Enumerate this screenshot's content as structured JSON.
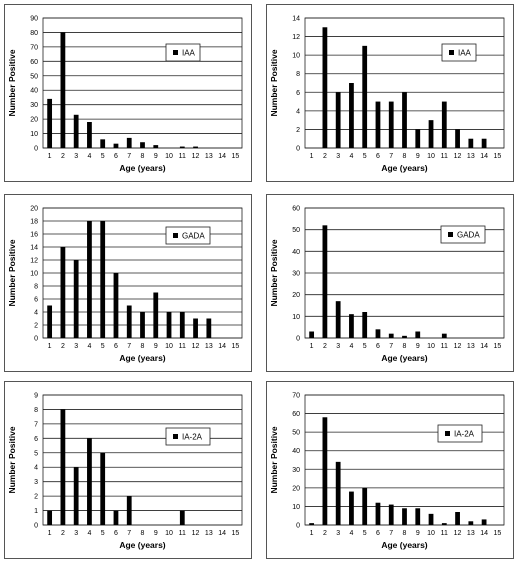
{
  "charts": [
    {
      "type": "bar",
      "title": "",
      "legend": "IAA",
      "xlabel": "Age (years)",
      "ylabel": "Number Positive",
      "categories": [
        "1",
        "2",
        "3",
        "4",
        "5",
        "6",
        "7",
        "8",
        "9",
        "10",
        "11",
        "12",
        "13",
        "14",
        "15"
      ],
      "values": [
        34,
        80,
        23,
        18,
        6,
        3,
        7,
        4,
        2,
        0,
        1,
        1,
        0,
        0,
        0
      ],
      "ylim": [
        0,
        90
      ],
      "yticks": [
        0,
        10,
        20,
        30,
        40,
        50,
        60,
        70,
        80,
        90
      ],
      "grid": true,
      "legend_position": "right"
    },
    {
      "type": "bar",
      "title": "",
      "legend": "IAA",
      "xlabel": "Age (years)",
      "ylabel": "Number Positive",
      "categories": [
        "1",
        "2",
        "3",
        "4",
        "5",
        "6",
        "7",
        "8",
        "9",
        "10",
        "11",
        "12",
        "13",
        "14",
        "15"
      ],
      "values": [
        0,
        13,
        6,
        7,
        11,
        5,
        5,
        6,
        2,
        3,
        5,
        2,
        1,
        1,
        0
      ],
      "ylim": [
        0,
        14
      ],
      "yticks": [
        0,
        2,
        4,
        6,
        8,
        10,
        12,
        14
      ],
      "grid": true,
      "legend_position": "right"
    },
    {
      "type": "bar",
      "title": "",
      "legend": "GADA",
      "xlabel": "Age (years)",
      "ylabel": "Number Positive",
      "categories": [
        "1",
        "2",
        "3",
        "4",
        "5",
        "6",
        "7",
        "8",
        "9",
        "10",
        "11",
        "12",
        "13",
        "14",
        "15"
      ],
      "values": [
        5,
        14,
        12,
        18,
        18,
        10,
        5,
        4,
        7,
        4,
        4,
        3,
        3,
        0,
        0
      ],
      "ylim": [
        0,
        20
      ],
      "yticks": [
        0,
        2,
        4,
        6,
        8,
        10,
        12,
        14,
        16,
        18,
        20
      ],
      "grid": true,
      "legend_position": "right"
    },
    {
      "type": "bar",
      "title": "",
      "legend": "GADA",
      "xlabel": "Age (years)",
      "ylabel": "Number Positive",
      "categories": [
        "1",
        "2",
        "3",
        "4",
        "5",
        "6",
        "7",
        "8",
        "9",
        "10",
        "11",
        "12",
        "13",
        "14",
        "15"
      ],
      "values": [
        3,
        52,
        17,
        11,
        12,
        4,
        2,
        1,
        3,
        0,
        2,
        0,
        0,
        0,
        0
      ],
      "ylim": [
        0,
        60
      ],
      "yticks": [
        0,
        10,
        20,
        30,
        40,
        50,
        60
      ],
      "grid": true,
      "legend_position": "right"
    },
    {
      "type": "bar",
      "title": "",
      "legend": "IA-2A",
      "xlabel": "Age (years)",
      "ylabel": "Number Positive",
      "categories": [
        "1",
        "2",
        "3",
        "4",
        "5",
        "6",
        "7",
        "8",
        "9",
        "10",
        "11",
        "12",
        "13",
        "14",
        "15"
      ],
      "values": [
        1,
        8,
        4,
        6,
        5,
        1,
        2,
        0,
        0,
        0,
        1,
        0,
        0,
        0,
        0
      ],
      "ylim": [
        0,
        9
      ],
      "yticks": [
        0,
        1,
        2,
        3,
        4,
        5,
        6,
        7,
        8,
        9
      ],
      "grid": true,
      "legend_position": "right"
    },
    {
      "type": "bar",
      "title": "",
      "legend": "IA-2A",
      "xlabel": "Age (years)",
      "ylabel": "Number Positive",
      "categories": [
        "1",
        "2",
        "3",
        "4",
        "5",
        "6",
        "7",
        "8",
        "9",
        "10",
        "11",
        "12",
        "13",
        "14",
        "15"
      ],
      "values": [
        1,
        58,
        34,
        18,
        20,
        12,
        11,
        9,
        9,
        6,
        1,
        7,
        2,
        3,
        0
      ],
      "ylim": [
        0,
        70
      ],
      "yticks": [
        0,
        10,
        20,
        30,
        40,
        50,
        60,
        70
      ],
      "grid": true,
      "legend_position": "right"
    }
  ]
}
